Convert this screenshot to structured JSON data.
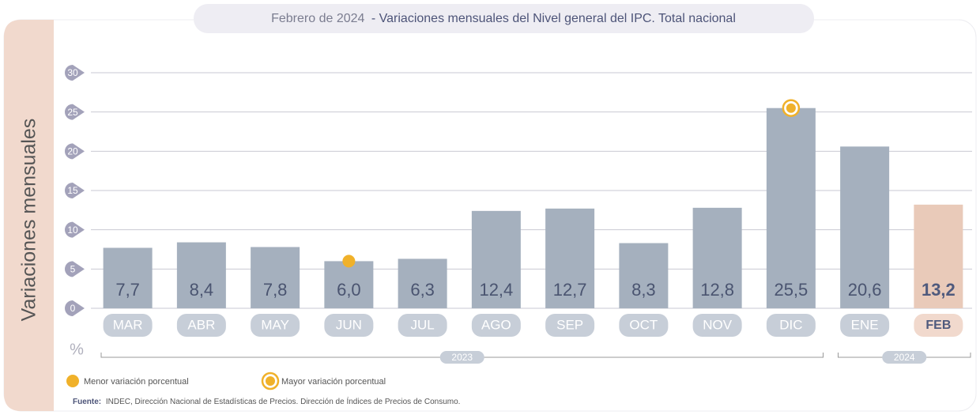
{
  "chart_data": {
    "type": "bar",
    "title_prefix": "Febrero de 2024",
    "title": "- Variaciones mensuales del Nivel general del IPC. Total nacional",
    "ylabel": "Variaciones mensuales",
    "unit": "%",
    "categories": [
      "MAR",
      "ABR",
      "MAY",
      "JUN",
      "JUL",
      "AGO",
      "SEP",
      "OCT",
      "NOV",
      "DIC",
      "ENE",
      "FEB"
    ],
    "values": [
      7.7,
      8.4,
      7.8,
      6.0,
      6.3,
      12.4,
      12.7,
      8.3,
      12.8,
      25.5,
      20.6,
      13.2
    ],
    "value_labels": [
      "7,7",
      "8,4",
      "7,8",
      "6,0",
      "6,3",
      "12,4",
      "12,7",
      "8,3",
      "12,8",
      "25,5",
      "20,6",
      "13,2"
    ],
    "color": "#a5b0be",
    "highlight": "FEB",
    "highlight_color": "#e9cab9",
    "marker_color": "#f0b12a",
    "ylim": [
      0,
      30
    ],
    "yticks": [
      0,
      5,
      10,
      15,
      20,
      25,
      30
    ],
    "grid": true,
    "x_groups": [
      {
        "label": "2023",
        "from": "MAR",
        "to": "DIC"
      },
      {
        "label": "2024",
        "from": "ENE",
        "to": "FEB"
      }
    ],
    "legend": [
      {
        "label": "Menor variación porcentual",
        "category": "JUN",
        "style": "dot"
      },
      {
        "label": "Mayor variación porcentual",
        "category": "DIC",
        "style": "ring"
      }
    ],
    "source_label": "Fuente:",
    "source": "INDEC, Dirección Nacional de Estadísticas de Precios. Dirección de Índices de Precios de Consumo."
  }
}
